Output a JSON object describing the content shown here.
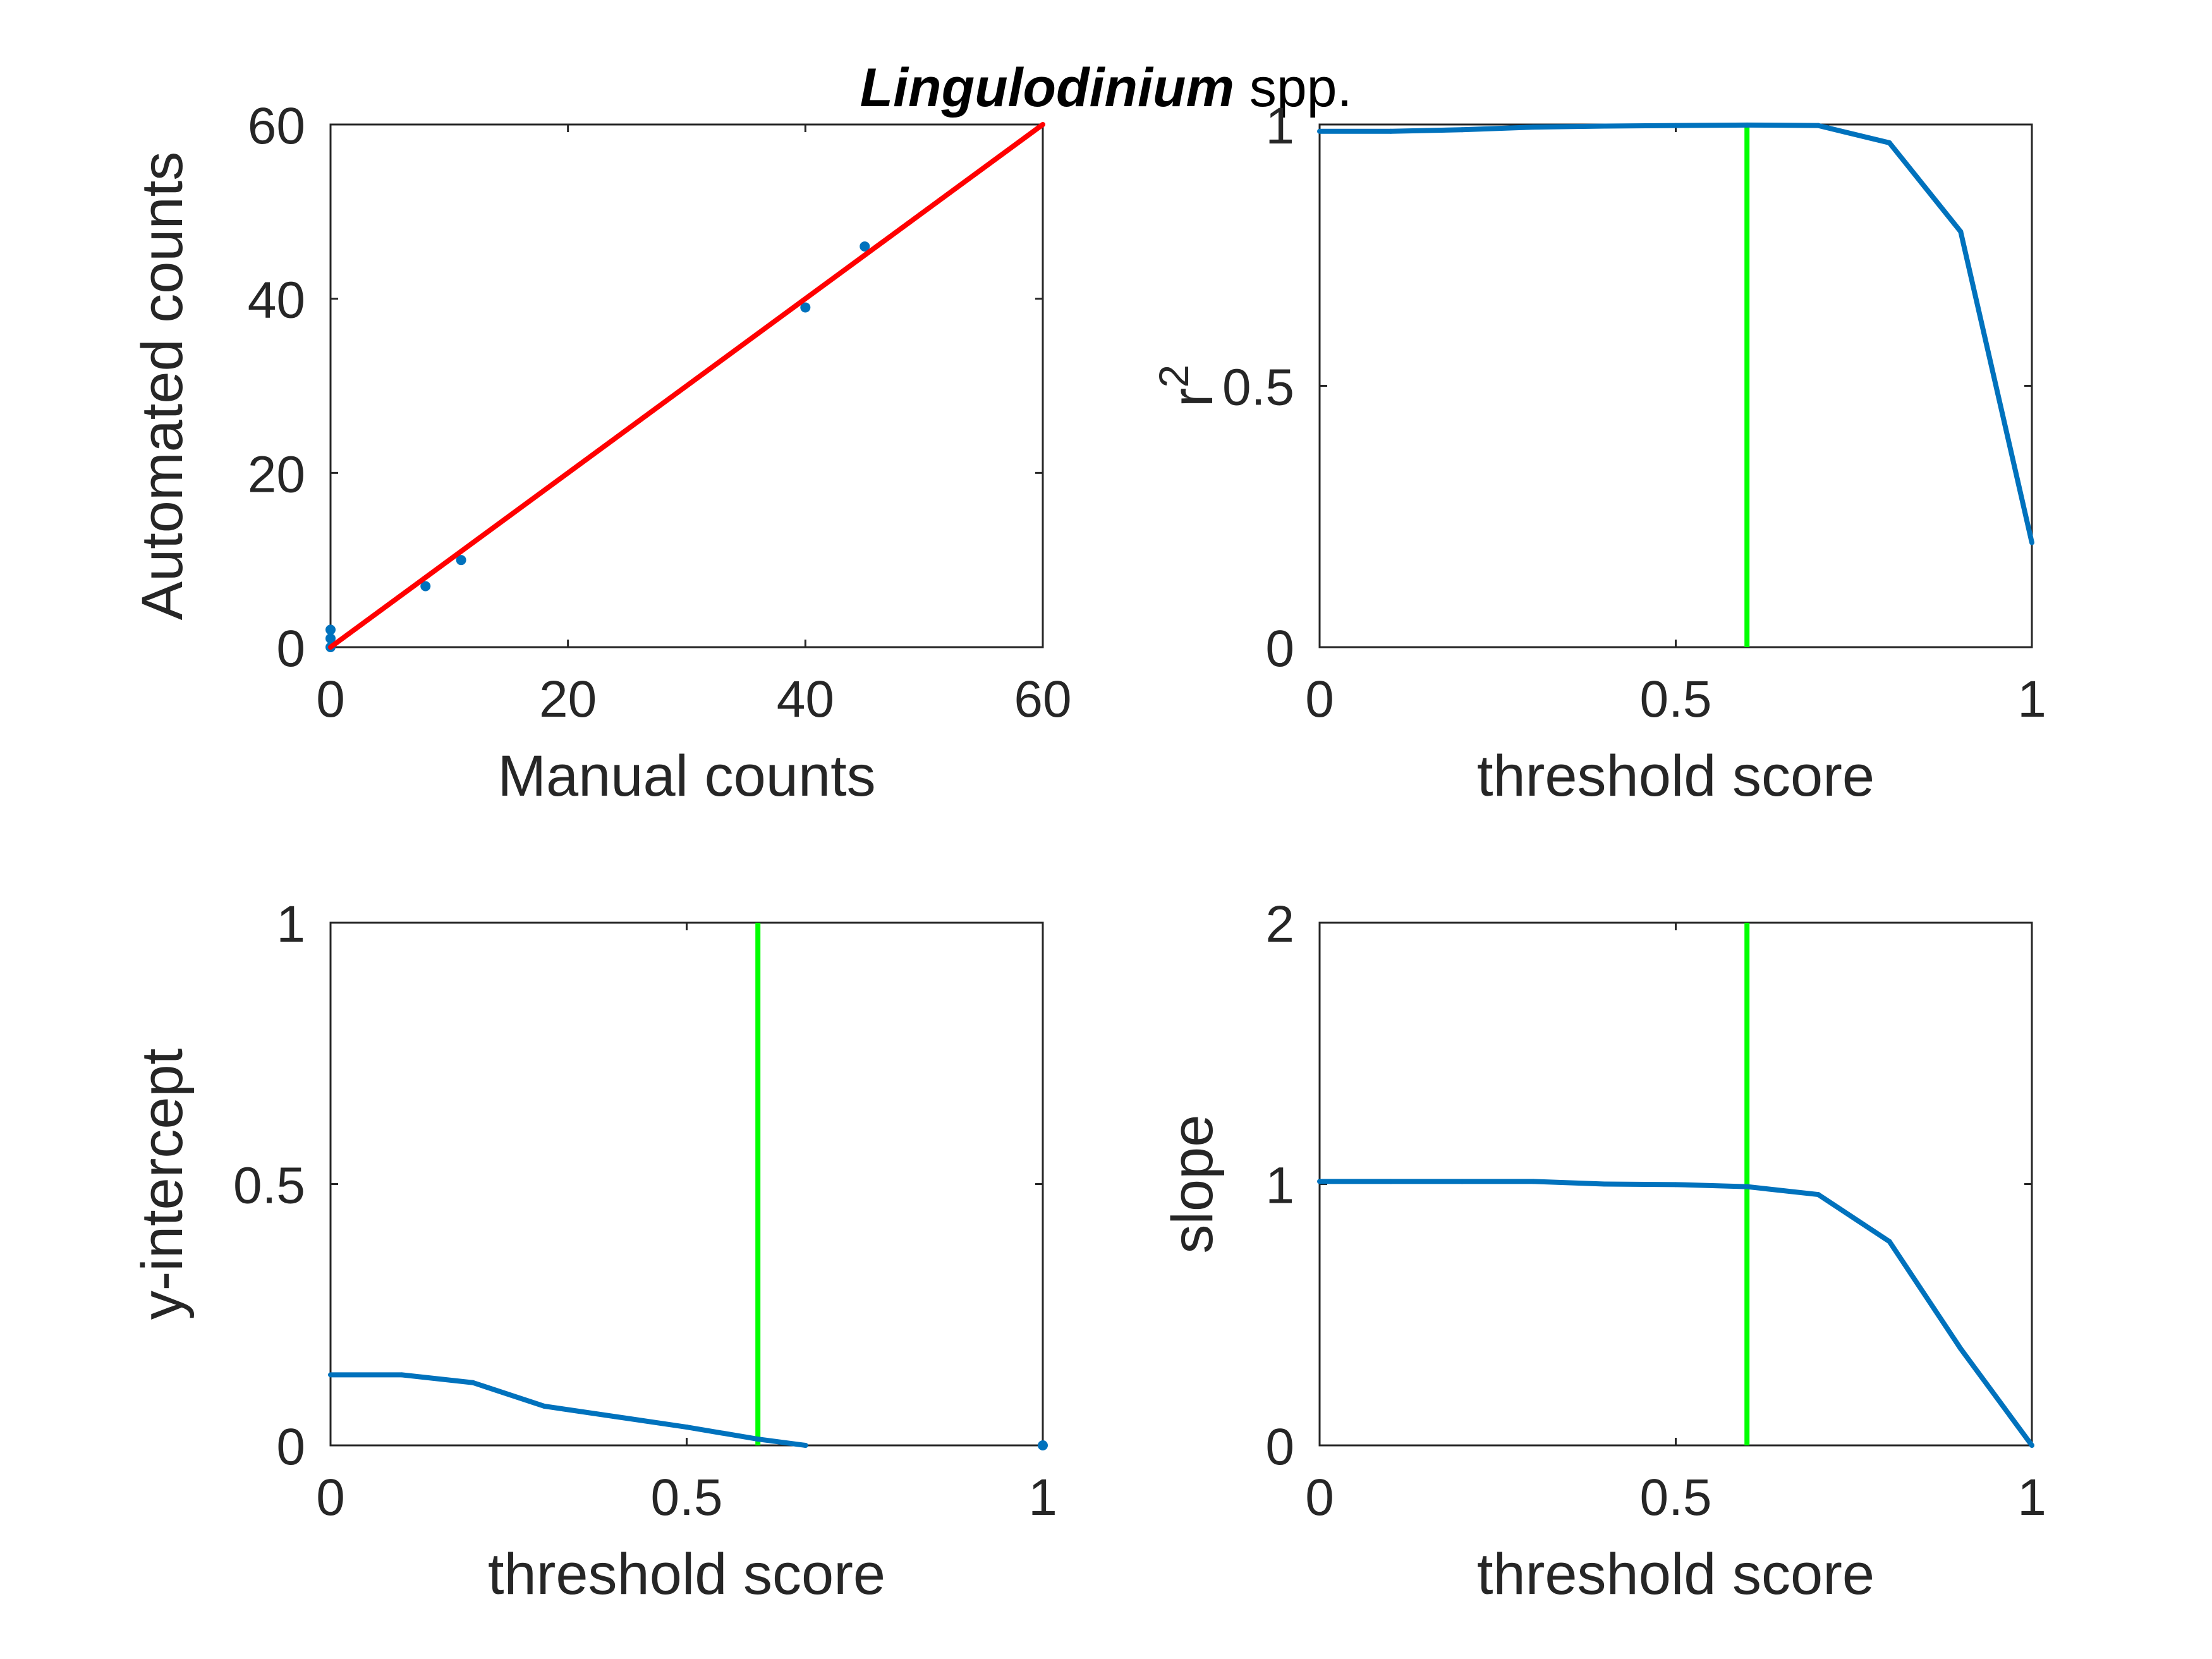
{
  "figure": {
    "title_italic": "Lingulodinium",
    "title_rest": " spp."
  },
  "chart_data": [
    {
      "type": "scatter",
      "panel": "top-left",
      "xlabel": "Manual counts",
      "ylabel": "Automated counts",
      "xlim": [
        0,
        60
      ],
      "ylim": [
        0,
        60
      ],
      "xticks": [
        "0",
        "20",
        "40",
        "60"
      ],
      "yticks": [
        "0",
        "20",
        "40",
        "60"
      ],
      "series": [
        {
          "kind": "points",
          "color": "#0072BD",
          "x": [
            0,
            0,
            0,
            8,
            11,
            40,
            45
          ],
          "y": [
            0,
            1,
            2,
            7,
            10,
            39,
            46
          ]
        },
        {
          "kind": "line",
          "color": "#FF0000",
          "x": [
            0,
            60
          ],
          "y": [
            0,
            60
          ]
        }
      ]
    },
    {
      "type": "line",
      "panel": "top-right",
      "xlabel": "threshold score",
      "ylabel": "r",
      "ylabel_sup": "2",
      "xlim": [
        0,
        1
      ],
      "ylim": [
        0,
        1
      ],
      "xticks": [
        "0",
        "0.5",
        "1"
      ],
      "yticks": [
        "0",
        "0.5",
        "1"
      ],
      "threshold": 0.6,
      "threshold_color": "#00FF00",
      "series": [
        {
          "kind": "line",
          "color": "#0072BD",
          "x": [
            0,
            0.1,
            0.2,
            0.3,
            0.4,
            0.5,
            0.6,
            0.7,
            0.8,
            0.9,
            1.0
          ],
          "y": [
            0.987,
            0.987,
            0.99,
            0.995,
            0.997,
            0.998,
            0.999,
            0.998,
            0.965,
            0.795,
            0.2
          ]
        }
      ]
    },
    {
      "type": "line",
      "panel": "bottom-left",
      "xlabel": "threshold score",
      "ylabel": "y-intercept",
      "xlim": [
        0,
        1
      ],
      "ylim": [
        0,
        1
      ],
      "xticks": [
        "0",
        "0.5",
        "1"
      ],
      "yticks": [
        "0",
        "0.5",
        "1"
      ],
      "threshold": 0.6,
      "threshold_color": "#00FF00",
      "series": [
        {
          "kind": "line",
          "color": "#0072BD",
          "x": [
            0,
            0.1,
            0.2,
            0.3,
            0.4,
            0.5,
            0.6,
            0.667
          ],
          "y": [
            0.135,
            0.135,
            0.12,
            0.075,
            0.055,
            0.035,
            0.012,
            0.0
          ]
        },
        {
          "kind": "points",
          "color": "#0072BD",
          "x": [
            1.0
          ],
          "y": [
            0.0
          ]
        }
      ]
    },
    {
      "type": "line",
      "panel": "bottom-right",
      "xlabel": "threshold score",
      "ylabel": "slope",
      "xlim": [
        0,
        1
      ],
      "ylim": [
        0,
        2
      ],
      "xticks": [
        "0",
        "0.5",
        "1"
      ],
      "yticks": [
        "0",
        "1",
        "2"
      ],
      "threshold": 0.6,
      "threshold_color": "#00FF00",
      "series": [
        {
          "kind": "line",
          "color": "#0072BD",
          "x": [
            0,
            0.1,
            0.2,
            0.3,
            0.4,
            0.5,
            0.6,
            0.7,
            0.8,
            0.9,
            1.0
          ],
          "y": [
            1.01,
            1.01,
            1.01,
            1.01,
            1.0,
            0.998,
            0.99,
            0.96,
            0.78,
            0.37,
            0.0
          ]
        }
      ]
    }
  ]
}
